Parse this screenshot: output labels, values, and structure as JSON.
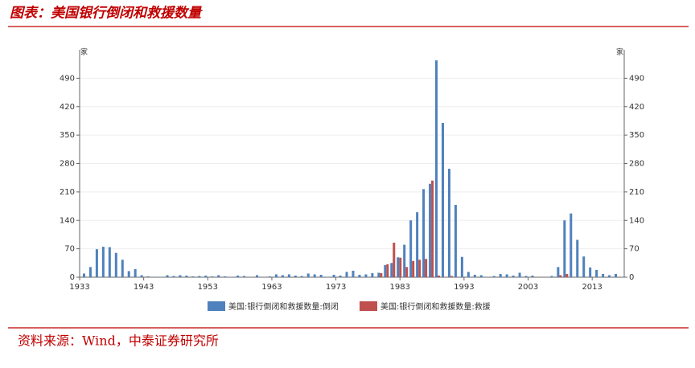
{
  "header": {
    "title": "图表：美国银行倒闭和救援数量"
  },
  "chart_data": {
    "type": "bar",
    "unit_left": "家",
    "unit_right": "家",
    "x": [
      1934,
      1935,
      1936,
      1937,
      1938,
      1939,
      1940,
      1941,
      1942,
      1943,
      1944,
      1945,
      1946,
      1947,
      1948,
      1949,
      1950,
      1951,
      1952,
      1953,
      1954,
      1955,
      1956,
      1957,
      1958,
      1959,
      1960,
      1961,
      1962,
      1963,
      1964,
      1965,
      1966,
      1967,
      1968,
      1969,
      1970,
      1971,
      1972,
      1973,
      1974,
      1975,
      1976,
      1977,
      1978,
      1979,
      1980,
      1981,
      1982,
      1983,
      1984,
      1985,
      1986,
      1987,
      1988,
      1989,
      1990,
      1991,
      1992,
      1993,
      1994,
      1995,
      1996,
      1997,
      1998,
      1999,
      2000,
      2001,
      2002,
      2003,
      2004,
      2005,
      2006,
      2007,
      2008,
      2009,
      2010,
      2011,
      2012,
      2013,
      2014,
      2015,
      2016,
      2017
    ],
    "series": [
      {
        "name": "美国:银行倒闭和救援数量:倒闭",
        "color": "#4f81bd",
        "values": [
          9,
          25,
          69,
          75,
          74,
          60,
          43,
          15,
          20,
          5,
          2,
          1,
          1,
          5,
          3,
          5,
          4,
          2,
          3,
          4,
          2,
          5,
          2,
          1,
          4,
          3,
          1,
          5,
          1,
          2,
          7,
          5,
          7,
          4,
          3,
          9,
          7,
          6,
          1,
          6,
          4,
          13,
          16,
          6,
          7,
          10,
          11,
          30,
          35,
          49,
          80,
          140,
          160,
          217,
          230,
          534,
          380,
          267,
          178,
          50,
          13,
          6,
          5,
          1,
          3,
          8,
          7,
          4,
          11,
          3,
          4,
          0,
          0,
          3,
          25,
          140,
          157,
          92,
          51,
          24,
          18,
          8,
          5,
          8
        ]
      },
      {
        "name": "美国:银行倒闭和救援数量:救援",
        "color": "#c0504d",
        "values": [
          0,
          0,
          0,
          0,
          0,
          0,
          0,
          0,
          0,
          0,
          0,
          0,
          0,
          0,
          0,
          0,
          0,
          0,
          0,
          0,
          0,
          0,
          0,
          0,
          0,
          0,
          0,
          0,
          0,
          0,
          0,
          0,
          0,
          0,
          0,
          0,
          0,
          0,
          0,
          0,
          0,
          0,
          0,
          0,
          0,
          0,
          10,
          32,
          85,
          48,
          25,
          40,
          43,
          45,
          238,
          4,
          1,
          3,
          0,
          0,
          0,
          0,
          0,
          0,
          0,
          0,
          0,
          0,
          0,
          0,
          0,
          0,
          0,
          0,
          5,
          8,
          0,
          0,
          0,
          0,
          0,
          0,
          0,
          0
        ]
      }
    ],
    "xlim": [
      1933,
      2018
    ],
    "xticks": [
      1933,
      1943,
      1953,
      1963,
      1973,
      1983,
      1993,
      2003,
      2013
    ],
    "ylim": [
      0,
      560
    ],
    "yticks": [
      0,
      70,
      140,
      210,
      280,
      350,
      420,
      490
    ],
    "y2lim": [
      0,
      560
    ],
    "y2ticks": [
      0,
      70,
      140,
      210,
      280,
      350,
      420,
      490
    ],
    "grid": true,
    "legend": "bottom"
  },
  "footer": {
    "source": "资料来源：Wind，中泰证券研究所"
  }
}
